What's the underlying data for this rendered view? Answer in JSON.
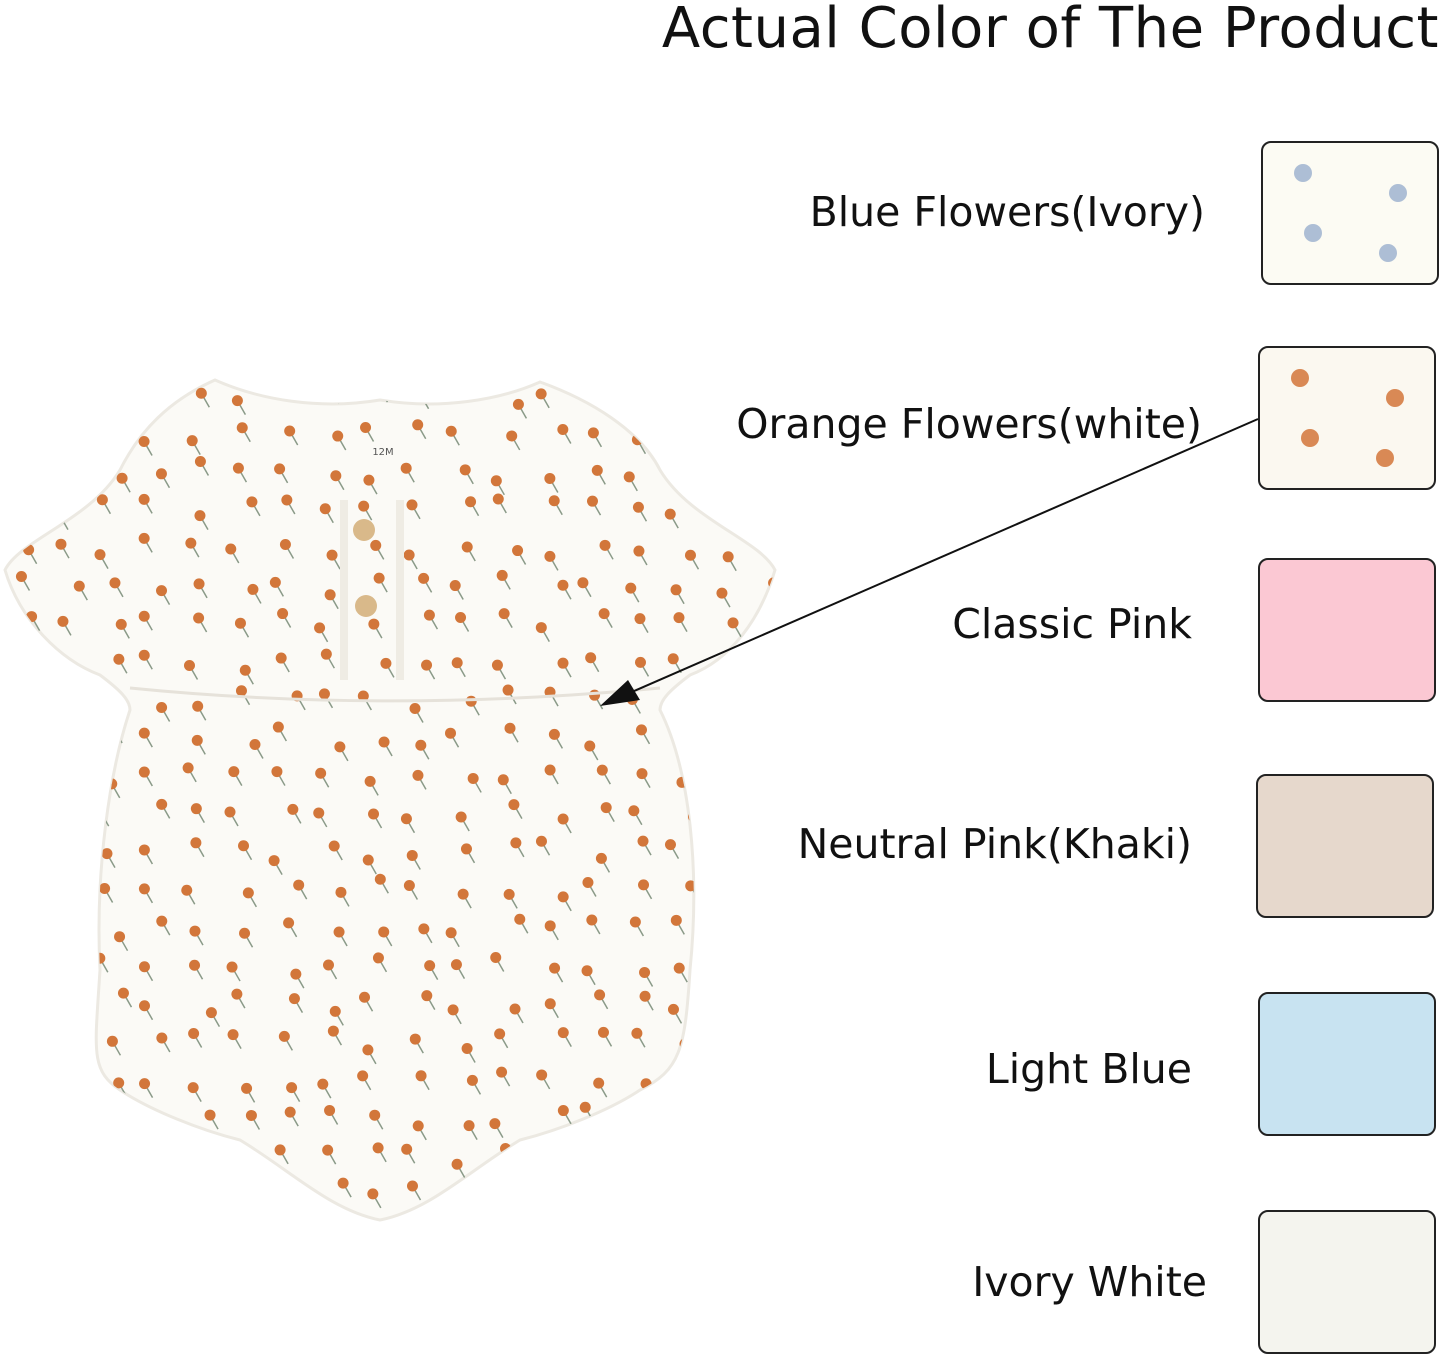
{
  "title": "Actual Color of The Product",
  "product_tag": "12M",
  "colors": [
    {
      "label": "Blue Flowers(Ivory)",
      "swatch": "#fcfbf3",
      "pattern": "blue-flowers",
      "flower": "#9fb3cf"
    },
    {
      "label": "Orange Flowers(white)",
      "swatch": "#fbf8f0",
      "pattern": "orange-flowers",
      "flower": "#d2763a"
    },
    {
      "label": "Classic Pink",
      "swatch": "#fbc8d3"
    },
    {
      "label": "Neutral Pink(Khaki)",
      "swatch": "#e6d8cc"
    },
    {
      "label": "Light Blue",
      "swatch": "#c8e3f1"
    },
    {
      "label": "Ivory White",
      "swatch": "#f4f4ee"
    }
  ]
}
